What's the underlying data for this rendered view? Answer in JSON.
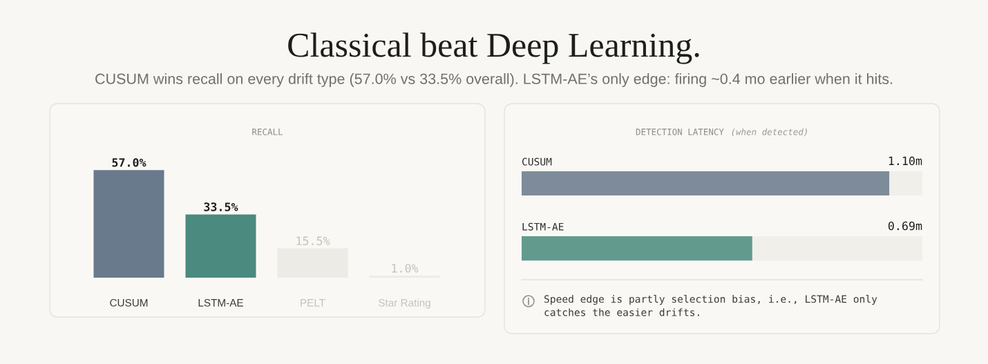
{
  "chart_data": [
    {
      "type": "other",
      "title": "Classical beat Deep Learning.",
      "subtitle": "CUSUM wins recall on every drift type (57.0% vs 33.5% overall). LSTM-AE’s only edge: firing ~0.4 mo earlier when it hits."
    },
    {
      "type": "bar",
      "title": "RECALL",
      "categories": [
        "CUSUM",
        "LSTM-AE",
        "PELT",
        "Star Rating"
      ],
      "values": [
        57.0,
        33.5,
        15.5,
        1.0
      ],
      "colors": [
        "#687a8b",
        "#4b8a7e",
        "#ecebe6",
        "#ecebe6"
      ],
      "value_labels": [
        "57.0%",
        "33.5%",
        "15.5%",
        "1.0%"
      ],
      "tick_labels": "x"
    },
    {
      "type": "bar",
      "orientation": "horizontal",
      "title": "DETECTION LATENCY",
      "subtitle": "(when detected)",
      "categories": [
        "CUSUM",
        "LSTM-AE"
      ],
      "values": [
        1.1,
        0.69
      ],
      "colors": [
        "#7e8b9a",
        "#629b8d"
      ],
      "value_labels": [
        "1.10m",
        "0.69m"
      ],
      "tick_labels": "y",
      "annotations": [
        "Speed edge is partly selection bias, i.e., LSTM-AE only catches the easier drifts."
      ]
    }
  ]
}
